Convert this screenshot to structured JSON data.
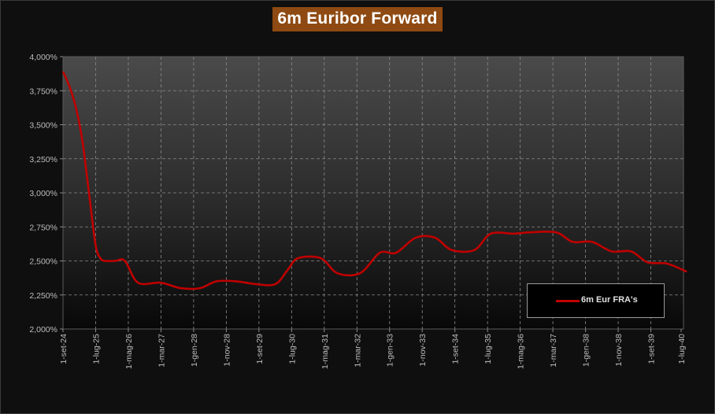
{
  "chart_data": {
    "type": "line",
    "title": "6m Euribor Forward",
    "xlabel": "",
    "ylabel": "",
    "ylim": [
      2.0,
      4.0
    ],
    "y_ticks": [
      "4,000%",
      "3,750%",
      "3,500%",
      "3,250%",
      "3,000%",
      "2,750%",
      "2,500%",
      "2,250%",
      "2,000%"
    ],
    "x_ticks": [
      "1-set-24",
      "1-lug-25",
      "1-mag-26",
      "1-mar-27",
      "1-gen-28",
      "1-nov-28",
      "1-set-29",
      "1-lug-30",
      "1-mag-31",
      "1-mar-32",
      "1-gen-33",
      "1-nov-33",
      "1-set-34",
      "1-lug-35",
      "1-mag-36",
      "1-mar-37",
      "1-gen-38",
      "1-nov-38",
      "1-set-39",
      "1-lug-40"
    ],
    "grid": true,
    "legend_position": "bottom-right",
    "series": [
      {
        "name": "6m Eur FRA's",
        "color": "#c00000",
        "points": [
          [
            "2024-09-01",
            3.89
          ],
          [
            "2024-11-01",
            3.78
          ],
          [
            "2025-01-01",
            3.62
          ],
          [
            "2025-03-01",
            3.38
          ],
          [
            "2025-05-01",
            3.0
          ],
          [
            "2025-07-01",
            2.62
          ],
          [
            "2025-08-15",
            2.52
          ],
          [
            "2025-10-01",
            2.5
          ],
          [
            "2026-01-01",
            2.5
          ],
          [
            "2026-04-01",
            2.5
          ],
          [
            "2026-08-01",
            2.34
          ],
          [
            "2027-03-01",
            2.34
          ],
          [
            "2027-09-01",
            2.3
          ],
          [
            "2028-03-01",
            2.3
          ],
          [
            "2028-08-01",
            2.35
          ],
          [
            "2029-02-01",
            2.35
          ],
          [
            "2029-08-01",
            2.33
          ],
          [
            "2030-02-01",
            2.33
          ],
          [
            "2030-06-01",
            2.44
          ],
          [
            "2030-09-01",
            2.52
          ],
          [
            "2031-04-01",
            2.52
          ],
          [
            "2031-09-01",
            2.41
          ],
          [
            "2032-04-01",
            2.41
          ],
          [
            "2032-10-01",
            2.56
          ],
          [
            "2033-03-01",
            2.56
          ],
          [
            "2033-09-01",
            2.67
          ],
          [
            "2034-03-01",
            2.67
          ],
          [
            "2034-08-01",
            2.58
          ],
          [
            "2035-03-01",
            2.58
          ],
          [
            "2035-08-01",
            2.7
          ],
          [
            "2036-03-01",
            2.7
          ],
          [
            "2036-08-01",
            2.71
          ],
          [
            "2037-04-01",
            2.71
          ],
          [
            "2037-09-01",
            2.64
          ],
          [
            "2038-03-01",
            2.64
          ],
          [
            "2038-09-01",
            2.57
          ],
          [
            "2039-03-01",
            2.57
          ],
          [
            "2039-08-01",
            2.49
          ],
          [
            "2040-02-01",
            2.48
          ],
          [
            "2040-08-01",
            2.42
          ]
        ]
      }
    ]
  }
}
